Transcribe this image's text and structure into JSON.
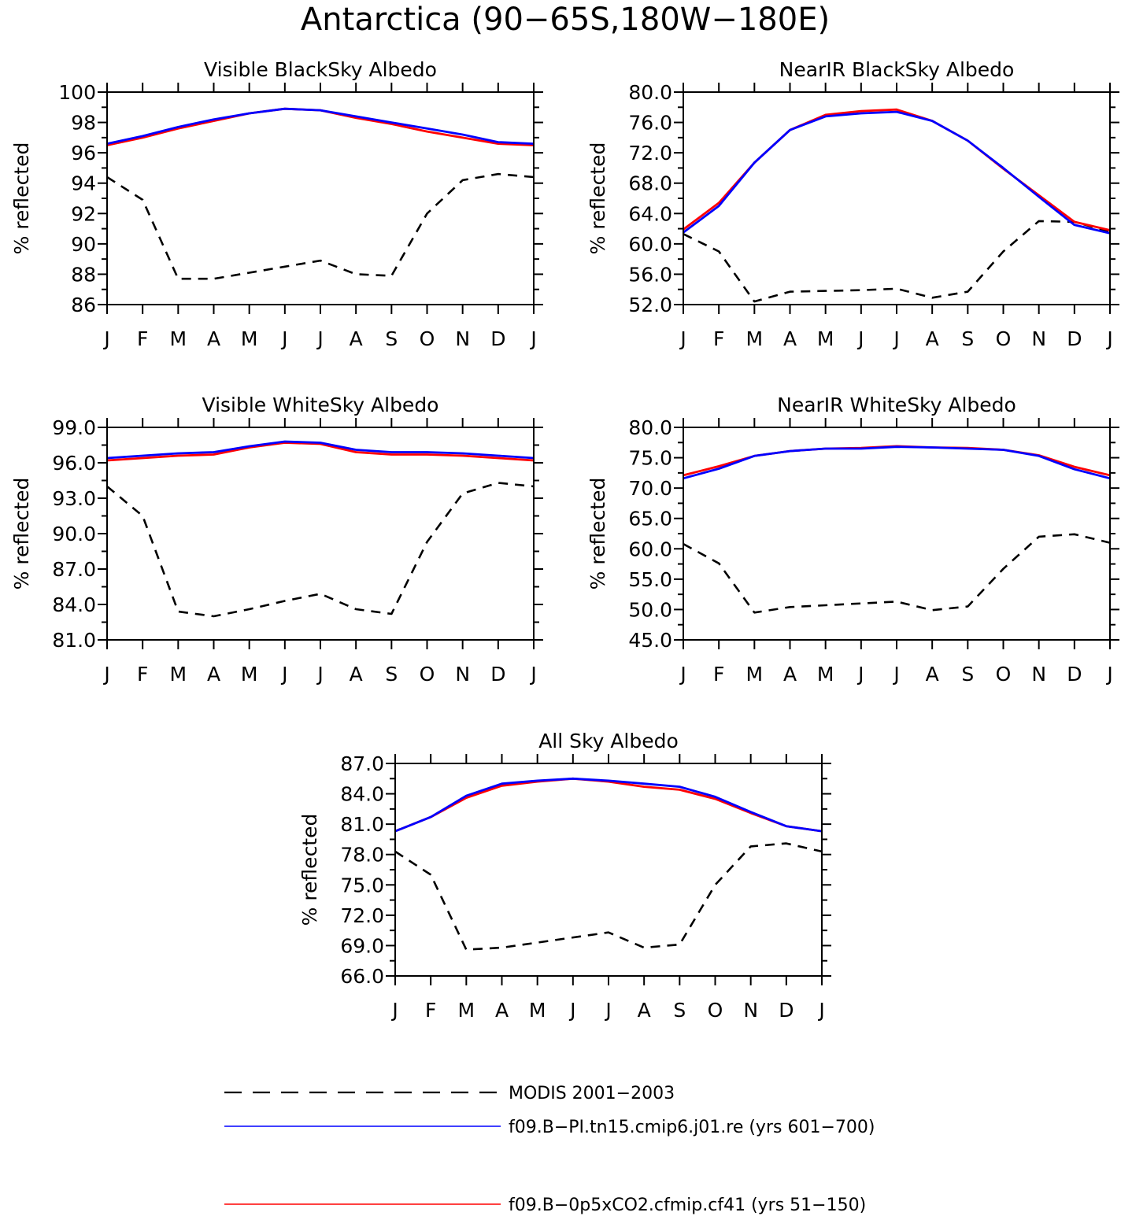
{
  "figure": {
    "title": "Antarctica (90−65S,180W−180E)"
  },
  "months": [
    "J",
    "F",
    "M",
    "A",
    "M",
    "J",
    "J",
    "A",
    "S",
    "O",
    "N",
    "D",
    "J"
  ],
  "legend": [
    {
      "label": "MODIS 2001−2003",
      "color": "#000000",
      "dash": "dashed"
    },
    {
      "label": "f09.B−PI.tn15.cmip6.j01.re (yrs 601−700)",
      "color": "#0000ff",
      "dash": "solid"
    },
    {
      "label": "f09.B−0p5xCO2.cfmip.cf41 (yrs 51−150)",
      "color": "#ff0000",
      "dash": "solid"
    }
  ],
  "chart_data": [
    {
      "type": "line",
      "title": "Visible BlackSky Albedo",
      "ylabel": "% reflected",
      "ylim": [
        86,
        100
      ],
      "yticks": [
        "86",
        "88",
        "90",
        "92",
        "94",
        "96",
        "98",
        "100"
      ],
      "yminor": 1,
      "categories": [
        "J",
        "F",
        "M",
        "A",
        "M",
        "J",
        "J",
        "A",
        "S",
        "O",
        "N",
        "D",
        "J"
      ],
      "series": [
        {
          "name": "MODIS 2001−2003",
          "color": "#000000",
          "dash": true,
          "values": [
            94.4,
            92.9,
            87.7,
            87.7,
            88.1,
            88.5,
            88.9,
            88.0,
            87.9,
            92.0,
            94.2,
            94.6,
            94.4
          ]
        },
        {
          "name": "f09.B−0p5xCO2.cfmip.cf41 (yrs 51−150)",
          "color": "#ff0000",
          "dash": false,
          "values": [
            96.5,
            97.0,
            97.6,
            98.1,
            98.6,
            98.9,
            98.8,
            98.3,
            97.9,
            97.4,
            97.0,
            96.6,
            96.5
          ]
        },
        {
          "name": "f09.B−PI.tn15.cmip6.j01.re (yrs 601−700)",
          "color": "#0000ff",
          "dash": false,
          "values": [
            96.6,
            97.1,
            97.7,
            98.2,
            98.6,
            98.9,
            98.8,
            98.4,
            98.0,
            97.6,
            97.2,
            96.7,
            96.6
          ]
        }
      ]
    },
    {
      "type": "line",
      "title": "NearIR BlackSky Albedo",
      "ylabel": "% reflected",
      "ylim": [
        52,
        80
      ],
      "yticks": [
        "52.0",
        "56.0",
        "60.0",
        "64.0",
        "68.0",
        "72.0",
        "76.0",
        "80.0"
      ],
      "yminor": 2,
      "categories": [
        "J",
        "F",
        "M",
        "A",
        "M",
        "J",
        "J",
        "A",
        "S",
        "O",
        "N",
        "D",
        "J"
      ],
      "series": [
        {
          "name": "MODIS 2001−2003",
          "color": "#000000",
          "dash": true,
          "values": [
            61.3,
            59.0,
            52.4,
            53.7,
            53.8,
            53.9,
            54.1,
            52.9,
            53.7,
            59.0,
            63.0,
            62.9,
            61.6
          ]
        },
        {
          "name": "f09.B−0p5xCO2.cfmip.cf41 (yrs 51−150)",
          "color": "#ff0000",
          "dash": false,
          "values": [
            61.9,
            65.4,
            70.7,
            75.0,
            77.0,
            77.5,
            77.7,
            76.2,
            73.6,
            69.9,
            66.4,
            62.9,
            61.8
          ]
        },
        {
          "name": "f09.B−PI.tn15.cmip6.j01.re (yrs 601−700)",
          "color": "#0000ff",
          "dash": false,
          "values": [
            61.5,
            65.0,
            70.7,
            75.0,
            76.8,
            77.2,
            77.4,
            76.2,
            73.6,
            70.0,
            66.2,
            62.5,
            61.4
          ]
        }
      ]
    },
    {
      "type": "line",
      "title": "Visible WhiteSky Albedo",
      "ylabel": "% reflected",
      "ylim": [
        81,
        99
      ],
      "yticks": [
        "81.0",
        "84.0",
        "87.0",
        "90.0",
        "93.0",
        "96.0",
        "99.0"
      ],
      "yminor": 1.5,
      "categories": [
        "J",
        "F",
        "M",
        "A",
        "M",
        "J",
        "J",
        "A",
        "S",
        "O",
        "N",
        "D",
        "J"
      ],
      "series": [
        {
          "name": "MODIS 2001−2003",
          "color": "#000000",
          "dash": true,
          "values": [
            94.0,
            91.5,
            83.4,
            83.0,
            83.6,
            84.3,
            84.9,
            83.6,
            83.2,
            89.3,
            93.4,
            94.3,
            94.0
          ]
        },
        {
          "name": "f09.B−0p5xCO2.cfmip.cf41 (yrs 51−150)",
          "color": "#ff0000",
          "dash": false,
          "values": [
            96.2,
            96.4,
            96.6,
            96.7,
            97.3,
            97.7,
            97.6,
            96.9,
            96.7,
            96.7,
            96.6,
            96.4,
            96.2
          ]
        },
        {
          "name": "f09.B−PI.tn15.cmip6.j01.re (yrs 601−700)",
          "color": "#0000ff",
          "dash": false,
          "values": [
            96.4,
            96.6,
            96.8,
            96.9,
            97.4,
            97.8,
            97.7,
            97.1,
            96.9,
            96.9,
            96.8,
            96.6,
            96.4
          ]
        }
      ]
    },
    {
      "type": "line",
      "title": "NearIR WhiteSky Albedo",
      "ylabel": "% reflected",
      "ylim": [
        45,
        80
      ],
      "yticks": [
        "45.0",
        "50.0",
        "55.0",
        "60.0",
        "65.0",
        "70.0",
        "75.0",
        "80.0"
      ],
      "yminor": 2.5,
      "categories": [
        "J",
        "F",
        "M",
        "A",
        "M",
        "J",
        "J",
        "A",
        "S",
        "O",
        "N",
        "D",
        "J"
      ],
      "series": [
        {
          "name": "MODIS 2001−2003",
          "color": "#000000",
          "dash": true,
          "values": [
            60.8,
            57.6,
            49.5,
            50.4,
            50.7,
            51.0,
            51.3,
            49.9,
            50.5,
            56.7,
            62.0,
            62.4,
            61.0
          ]
        },
        {
          "name": "f09.B−0p5xCO2.cfmip.cf41 (yrs 51−150)",
          "color": "#ff0000",
          "dash": false,
          "values": [
            72.1,
            73.6,
            75.3,
            76.1,
            76.5,
            76.6,
            76.9,
            76.7,
            76.6,
            76.3,
            75.4,
            73.5,
            72.1
          ]
        },
        {
          "name": "f09.B−PI.tn15.cmip6.j01.re (yrs 601−700)",
          "color": "#0000ff",
          "dash": false,
          "values": [
            71.6,
            73.2,
            75.3,
            76.1,
            76.5,
            76.5,
            76.8,
            76.7,
            76.5,
            76.3,
            75.3,
            73.1,
            71.6
          ]
        }
      ]
    },
    {
      "type": "line",
      "title": "All Sky Albedo",
      "ylabel": "% reflected",
      "ylim": [
        66,
        87
      ],
      "yticks": [
        "66.0",
        "69.0",
        "72.0",
        "75.0",
        "78.0",
        "81.0",
        "84.0",
        "87.0"
      ],
      "yminor": 1.5,
      "categories": [
        "J",
        "F",
        "M",
        "A",
        "M",
        "J",
        "J",
        "A",
        "S",
        "O",
        "N",
        "D",
        "J"
      ],
      "series": [
        {
          "name": "MODIS 2001−2003",
          "color": "#000000",
          "dash": true,
          "values": [
            78.3,
            76.0,
            68.6,
            68.8,
            69.3,
            69.8,
            70.3,
            68.8,
            69.1,
            75.0,
            78.8,
            79.1,
            78.3
          ]
        },
        {
          "name": "f09.B−0p5xCO2.cfmip.cf41 (yrs 51−150)",
          "color": "#ff0000",
          "dash": false,
          "values": [
            80.3,
            81.7,
            83.6,
            84.8,
            85.2,
            85.5,
            85.2,
            84.7,
            84.4,
            83.5,
            82.1,
            80.8,
            80.3
          ]
        },
        {
          "name": "f09.B−PI.tn15.cmip6.j01.re (yrs 601−700)",
          "color": "#0000ff",
          "dash": false,
          "values": [
            80.3,
            81.7,
            83.8,
            85.0,
            85.3,
            85.5,
            85.3,
            85.0,
            84.7,
            83.7,
            82.2,
            80.8,
            80.3
          ]
        }
      ]
    }
  ]
}
